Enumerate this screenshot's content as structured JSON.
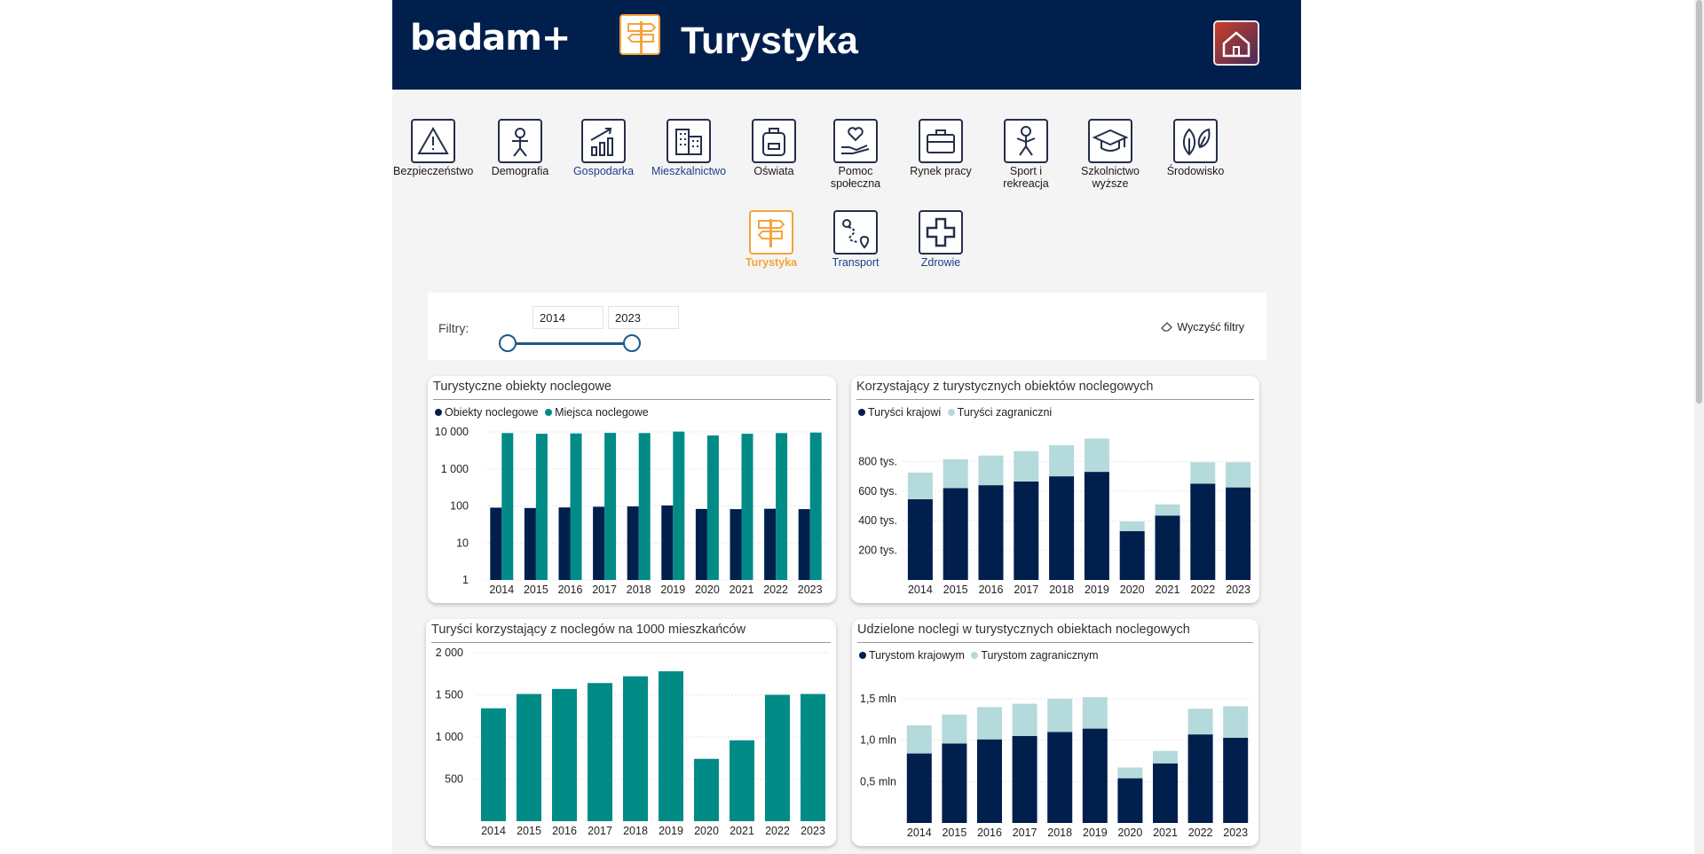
{
  "header": {
    "logo": "badam+",
    "title": "Turystyka",
    "home_icon": "home-icon"
  },
  "categories": [
    {
      "label": "Bezpieczeństwo",
      "icon": "warning-icon",
      "style": "plain"
    },
    {
      "label": "Demografia",
      "icon": "person-icon",
      "style": "plain"
    },
    {
      "label": "Gospodarka",
      "icon": "chart-up-icon",
      "style": "blue"
    },
    {
      "label": "Mieszkalnictwo",
      "icon": "building-icon",
      "style": "blue"
    },
    {
      "label": "Oświata",
      "icon": "backpack-icon",
      "style": "plain"
    },
    {
      "label": "Pomoc społeczna",
      "icon": "heart-hand-icon",
      "style": "plain"
    },
    {
      "label": "Rynek pracy",
      "icon": "briefcase-icon",
      "style": "plain"
    },
    {
      "label": "Sport i rekreacja",
      "icon": "sport-person-icon",
      "style": "plain"
    },
    {
      "label": "Szkolnictwo wyższe",
      "icon": "graduation-cap-icon",
      "style": "plain"
    },
    {
      "label": "Środowisko",
      "icon": "leaf-icon",
      "style": "plain"
    },
    {
      "label": "Turystyka",
      "icon": "signpost-icon",
      "style": "active"
    },
    {
      "label": "Transport",
      "icon": "route-icon",
      "style": "blue"
    },
    {
      "label": "Zdrowie",
      "icon": "medical-cross-icon",
      "style": "blue"
    }
  ],
  "filters": {
    "label": "Filtry:",
    "year_from": "2014",
    "year_to": "2023",
    "clear_label": "Wyczyść filtry"
  },
  "colors": {
    "navy": "#001f4d",
    "teal": "#008b87",
    "light_teal": "#b4dadb",
    "orange": "#f4a43b"
  },
  "chart_data": [
    {
      "id": "obiekty",
      "type": "bar",
      "title": "Turystyczne obiekty noclegowe",
      "yscale": "log",
      "ylim": [
        1,
        10000
      ],
      "yticks": [
        "1",
        "10",
        "100",
        "1 000",
        "10 000"
      ],
      "categories": [
        "2014",
        "2015",
        "2016",
        "2017",
        "2018",
        "2019",
        "2020",
        "2021",
        "2022",
        "2023"
      ],
      "series": [
        {
          "name": "Obiekty noclegowe",
          "color": "#001f4d",
          "values": [
            90,
            88,
            91,
            95,
            97,
            103,
            83,
            82,
            84,
            82
          ]
        },
        {
          "name": "Miejsca noclegowe",
          "color": "#008b87",
          "values": [
            9300,
            8900,
            9100,
            9400,
            9300,
            10200,
            8000,
            8900,
            9300,
            9600
          ]
        }
      ]
    },
    {
      "id": "korzystajacy",
      "type": "bar",
      "title": "Korzystający z turystycznych obiektów noclegowych",
      "stacked": true,
      "ylim": [
        0,
        1000000
      ],
      "yticks": [
        "200 tys.",
        "400 tys.",
        "600 tys.",
        "800 tys."
      ],
      "categories": [
        "2014",
        "2015",
        "2016",
        "2017",
        "2018",
        "2019",
        "2020",
        "2021",
        "2022",
        "2023"
      ],
      "series": [
        {
          "name": "Turyści krajowi",
          "color": "#001f4d",
          "values": [
            545000,
            620000,
            640000,
            665000,
            700000,
            730000,
            330000,
            435000,
            650000,
            625000
          ]
        },
        {
          "name": "Turyści zagraniczni",
          "color": "#b4dadb",
          "values": [
            180000,
            195000,
            200000,
            205000,
            210000,
            225000,
            65000,
            75000,
            145000,
            170000
          ]
        }
      ]
    },
    {
      "id": "na1000",
      "type": "bar",
      "title": "Turyści korzystający z noclegów na 1000 mieszkańców",
      "ylim": [
        0,
        2000
      ],
      "yticks": [
        "500",
        "1 000",
        "1 500",
        "2 000"
      ],
      "categories": [
        "2014",
        "2015",
        "2016",
        "2017",
        "2018",
        "2019",
        "2020",
        "2021",
        "2022",
        "2023"
      ],
      "series": [
        {
          "color": "#008b87",
          "values": [
            1340,
            1510,
            1570,
            1640,
            1720,
            1780,
            740,
            960,
            1500,
            1510
          ]
        }
      ]
    },
    {
      "id": "noclegi",
      "type": "bar",
      "title": "Udzielone noclegi w turystycznych obiektach noclegowych",
      "stacked": true,
      "ylim": [
        0,
        1800000
      ],
      "yticks": [
        "0,5 mln",
        "1,0 mln",
        "1,5 mln"
      ],
      "categories": [
        "2014",
        "2015",
        "2016",
        "2017",
        "2018",
        "2019",
        "2020",
        "2021",
        "2022",
        "2023"
      ],
      "series": [
        {
          "name": "Turystom krajowym",
          "color": "#001f4d",
          "values": [
            840000,
            960000,
            1010000,
            1050000,
            1100000,
            1140000,
            540000,
            720000,
            1070000,
            1030000
          ]
        },
        {
          "name": "Turystom zagranicznym",
          "color": "#b4dadb",
          "values": [
            340000,
            350000,
            390000,
            390000,
            400000,
            380000,
            130000,
            150000,
            310000,
            380000
          ]
        }
      ]
    }
  ]
}
